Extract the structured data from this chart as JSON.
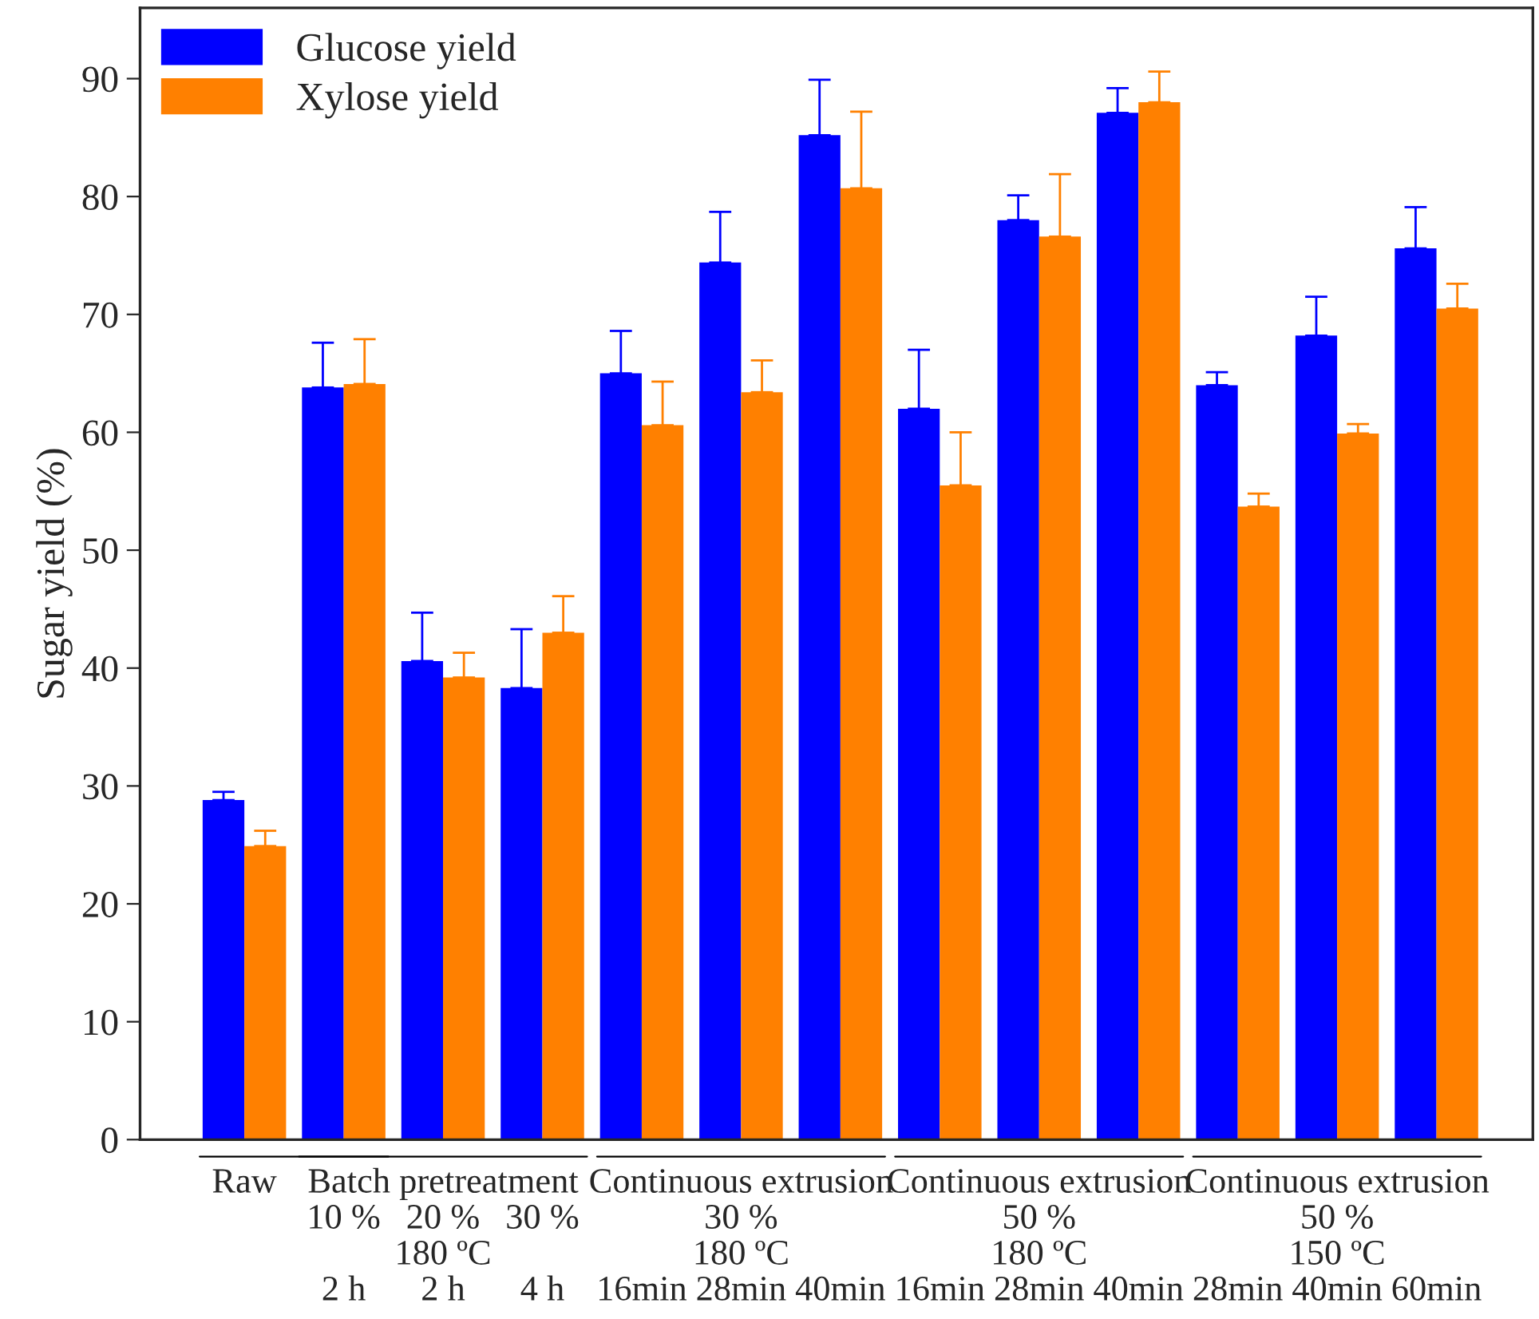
{
  "chart_data": {
    "type": "bar",
    "ylabel": "Sugar yield (%)",
    "categories": [
      "Raw",
      "\n10 %\n\n2 h",
      "Batch pretreatment\n20 %\n180 ºC\n2 h",
      "\n30 %\n\n4 h",
      "\n\n\n16min",
      "Continuous extrusion\n30 %\n180 ºC\n28min",
      "\n\n\n40min",
      "\n\n\n16min",
      "Continuous extrusion\n50 %\n180 ºC\n28min",
      "\n\n\n40min",
      "\n\n\n28min",
      "Continuous extrusion\n50 %\n150 ºC\n40min",
      "\n\n\n60min"
    ],
    "series": [
      {
        "name": "Glucose yield",
        "color": "#0000ff",
        "values": [
          28.8,
          63.8,
          40.6,
          38.3,
          65.0,
          74.4,
          85.2,
          62.0,
          78.0,
          87.1,
          64.0,
          68.2,
          75.6
        ],
        "errors": [
          [
            28.8,
            29.5
          ],
          [
            63.8,
            67.6
          ],
          [
            40.6,
            44.7
          ],
          [
            38.3,
            43.3
          ],
          [
            65.0,
            68.6
          ],
          [
            74.4,
            78.7
          ],
          [
            85.2,
            89.9
          ],
          [
            62.0,
            67.0
          ],
          [
            78.0,
            80.1
          ],
          [
            87.1,
            89.2
          ],
          [
            64.0,
            65.1
          ],
          [
            68.2,
            71.5
          ],
          [
            75.6,
            79.1
          ]
        ]
      },
      {
        "name": "Xylose yield",
        "color": "#ff8000",
        "values": [
          24.9,
          64.1,
          39.2,
          43.0,
          60.6,
          63.4,
          80.7,
          55.5,
          76.6,
          88.0,
          53.7,
          59.9,
          70.5
        ],
        "errors": [
          [
            24.9,
            26.2
          ],
          [
            64.1,
            67.9
          ],
          [
            39.2,
            41.3
          ],
          [
            43.0,
            46.1
          ],
          [
            60.6,
            64.3
          ],
          [
            63.4,
            66.1
          ],
          [
            80.7,
            87.2
          ],
          [
            55.5,
            60.0
          ],
          [
            76.6,
            81.9
          ],
          [
            88.0,
            90.6
          ],
          [
            53.7,
            54.8
          ],
          [
            59.9,
            60.7
          ],
          [
            70.5,
            72.6
          ]
        ]
      }
    ],
    "ylim": [
      0,
      96
    ],
    "yticks": [
      0,
      10,
      20,
      30,
      40,
      50,
      60,
      70,
      80,
      90
    ],
    "grid": false,
    "legend": "top left"
  }
}
